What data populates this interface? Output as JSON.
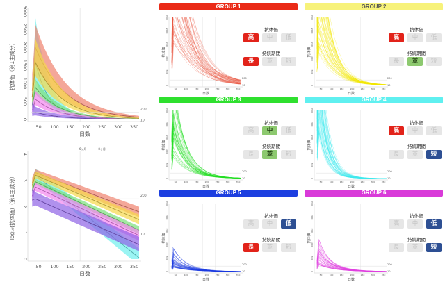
{
  "chart_data": [
    {
      "type": "area",
      "title": "",
      "xlabel": "日数",
      "ylabel": "抗体価（第1主成分）",
      "xlim": [
        25,
        365
      ],
      "ylim": [
        0,
        3000
      ],
      "xticks": [
        50,
        100,
        150,
        200,
        250,
        300,
        350
      ],
      "yticks": [
        0,
        500,
        1000,
        1500,
        2000,
        2500,
        3000
      ],
      "vlines": [
        180,
        240
      ],
      "hlines": [
        {
          "value": 200,
          "label": "200"
        },
        {
          "value": 10,
          "label": "10"
        }
      ],
      "scale": "linear",
      "grid": false
    },
    {
      "type": "area",
      "title": "",
      "xlabel": "日数",
      "ylabel": "log₁₀(抗体価)（第1主成分）",
      "xlim": [
        25,
        365
      ],
      "ylim": [
        0,
        4
      ],
      "xticks": [
        50,
        100,
        150,
        200,
        250,
        300,
        350
      ],
      "yticks": [
        0,
        1,
        2,
        3,
        4
      ],
      "vlines": [
        {
          "value": 180,
          "label": "6ヶ月"
        },
        {
          "value": 240,
          "label": "8ヶ月"
        }
      ],
      "hlines": [
        {
          "value": 2.301,
          "label": "200"
        },
        {
          "value": 1,
          "label": "10"
        }
      ],
      "scale": "log10",
      "grid": false,
      "x": [
        30,
        40,
        365
      ],
      "series": [
        {
          "name": "GROUP 4",
          "color": "#6ff0ee",
          "median": [
            2.8,
            3.2,
            0.05
          ],
          "lower": [
            2.6,
            3.05,
            -0.25
          ],
          "upper": [
            3.0,
            3.45,
            0.4
          ]
        },
        {
          "name": "GROUP 1",
          "color": "#f0826e",
          "median": [
            2.9,
            3.3,
            1.8
          ],
          "lower": [
            2.7,
            3.18,
            1.6
          ],
          "upper": [
            3.1,
            3.42,
            2.0
          ]
        },
        {
          "name": "GROUP 2",
          "color": "#f7d84a",
          "median": [
            2.8,
            3.2,
            1.5
          ],
          "lower": [
            2.6,
            3.08,
            1.33
          ],
          "upper": [
            3.0,
            3.35,
            1.7
          ]
        },
        {
          "name": "GROUP 3",
          "color": "#7be07a",
          "median": [
            2.6,
            2.95,
            1.1
          ],
          "lower": [
            2.5,
            2.85,
            0.95
          ],
          "upper": [
            2.75,
            3.05,
            1.25
          ]
        },
        {
          "name": "GROUP 6",
          "color": "#f384f0",
          "median": [
            2.4,
            2.75,
            0.9
          ],
          "lower": [
            2.2,
            2.6,
            0.7
          ],
          "upper": [
            2.6,
            2.9,
            1.1
          ]
        },
        {
          "name": "GROUP 5",
          "color": "#8f62e6",
          "median": [
            2.25,
            2.3,
            0.55
          ],
          "lower": [
            2.0,
            2.05,
            0.3
          ],
          "upper": [
            2.7,
            2.55,
            0.85
          ]
        }
      ]
    }
  ],
  "panels": {
    "xticks": [
      50,
      100,
      150,
      200,
      250,
      300,
      350
    ],
    "yticks": [
      0,
      500,
      1000,
      1500,
      2000,
      2500
    ],
    "xlabel": "日数",
    "ylabel": "抗体価",
    "ref_label": "200",
    "ref_label_low": "10",
    "titer_label": "抗体価",
    "duration_label": "持続期間",
    "titer_options": [
      "高",
      "中",
      "低"
    ],
    "duration_options": [
      "長",
      "並",
      "短"
    ],
    "option_colors": [
      "#e2231a",
      "#8dc96f",
      "#2d4f93"
    ],
    "option_text_colors": [
      "#ffffff",
      "#1e3a10",
      "#ffffff"
    ],
    "groups": [
      {
        "title": "GROUP 1",
        "color": "#ea2a17",
        "line_color": "#e8553e",
        "titer": 0,
        "duration": 0,
        "peak_log": [
          3.2,
          3.9
        ],
        "end_log": [
          1.6,
          2.3
        ]
      },
      {
        "title": "GROUP 2",
        "color": "#f7f27a",
        "title_color": "#555555",
        "line_color": "#f2e600",
        "titer": 0,
        "duration": 1,
        "peak_log": [
          3.1,
          3.8
        ],
        "end_log": [
          1.0,
          1.6
        ]
      },
      {
        "title": "GROUP 3",
        "color": "#2fe02f",
        "line_color": "#22dd22",
        "titer": 1,
        "duration": 1,
        "peak_log": [
          2.9,
          3.6
        ],
        "end_log": [
          0.8,
          1.3
        ]
      },
      {
        "title": "GROUP 4",
        "color": "#5ff0f0",
        "line_color": "#3ee8ee",
        "titer": 0,
        "duration": 2,
        "peak_log": [
          3.2,
          3.8
        ],
        "end_log": [
          -0.5,
          0.5
        ]
      },
      {
        "title": "GROUP 5",
        "color": "#1d3fe0",
        "line_color": "#1a3ae0",
        "titer": 2,
        "duration": 0,
        "peak_log": [
          2.2,
          3.0
        ],
        "end_log": [
          0.2,
          0.9
        ]
      },
      {
        "title": "GROUP 6",
        "color": "#d93ad9",
        "line_color": "#e040e0",
        "titer": 2,
        "duration": 2,
        "peak_log": [
          2.4,
          3.1
        ],
        "end_log": [
          0.3,
          1.0
        ]
      }
    ]
  }
}
